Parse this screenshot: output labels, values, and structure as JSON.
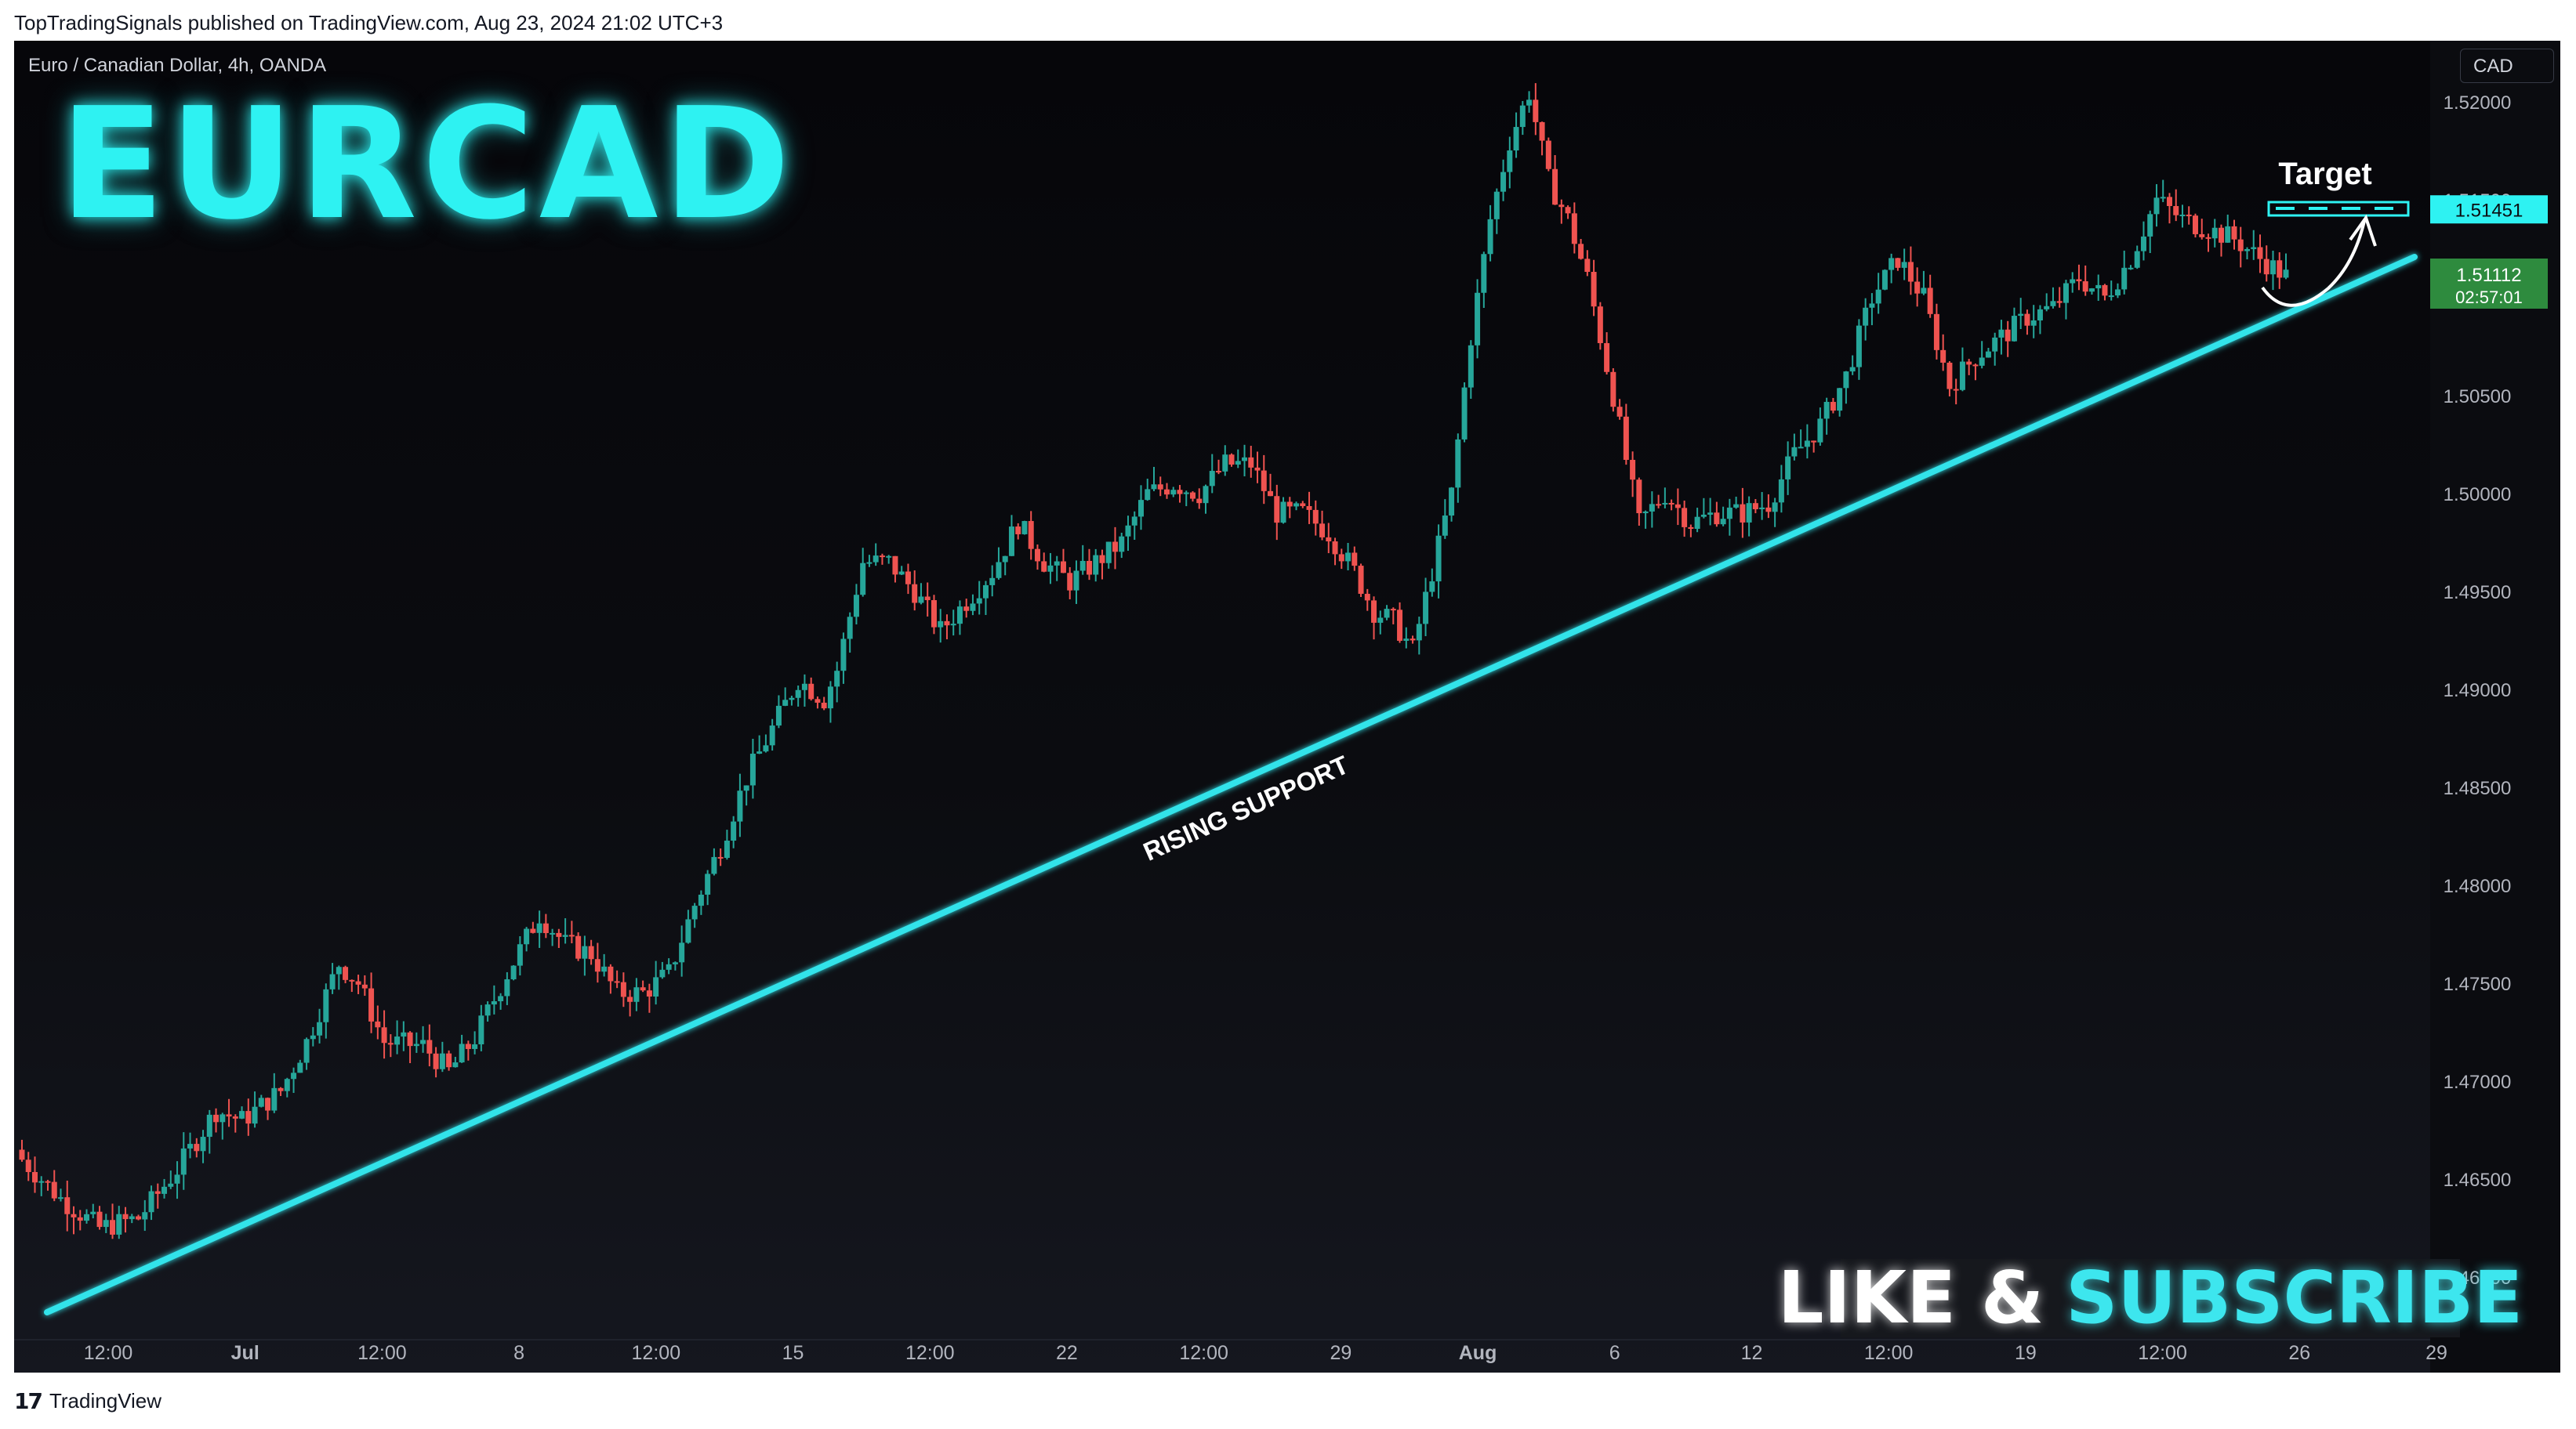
{
  "header": {
    "published_line": "TopTradingSignals published on TradingView.com, Aug 23, 2024 21:02 UTC+3"
  },
  "chart": {
    "symbol_line": "Euro / Canadian Dollar, 4h, OANDA",
    "currency": "CAD",
    "big_title": "EURCAD",
    "support_label": "RISING SUPPORT",
    "target_label": "Target",
    "target_price": "1.51451",
    "last_price": "1.51112",
    "countdown": "02:57:01",
    "cta_part1": "LIKE &",
    "cta_part2": "SUBSCRIBE",
    "colors": {
      "up": "#26a69a",
      "down": "#ef5350",
      "support": "#33e3ea",
      "target": "#2ef2f2",
      "last_price_bg": "#2e8b3e"
    }
  },
  "chart_data": {
    "type": "candlestick",
    "title": "Euro / Canadian Dollar, 4h, OANDA",
    "y_ticks": [
      "1.46000",
      "1.46500",
      "1.47000",
      "1.47500",
      "1.48000",
      "1.48500",
      "1.49000",
      "1.49500",
      "1.50000",
      "1.50500",
      "1.51000",
      "1.51500",
      "1.52000"
    ],
    "x_ticks": [
      "12:00",
      "Jul",
      "12:00",
      "8",
      "12:00",
      "15",
      "12:00",
      "22",
      "12:00",
      "29",
      "Aug",
      "6",
      "12",
      "12:00",
      "19",
      "12:00",
      "26",
      "29"
    ],
    "ylim": [
      1.4576,
      1.5242
    ],
    "close_path": [
      [
        0,
        1.466
      ],
      [
        6,
        1.464
      ],
      [
        12,
        1.4625
      ],
      [
        18,
        1.463
      ],
      [
        24,
        1.4655
      ],
      [
        30,
        1.4685
      ],
      [
        34,
        1.468
      ],
      [
        40,
        1.4695
      ],
      [
        44,
        1.472
      ],
      [
        49,
        1.476
      ],
      [
        52,
        1.475
      ],
      [
        56,
        1.472
      ],
      [
        62,
        1.4718
      ],
      [
        66,
        1.4705
      ],
      [
        70,
        1.4722
      ],
      [
        75,
        1.4755
      ],
      [
        80,
        1.4785
      ],
      [
        84,
        1.477
      ],
      [
        88,
        1.4765
      ],
      [
        92,
        1.4745
      ],
      [
        96,
        1.4745
      ],
      [
        100,
        1.4755
      ],
      [
        104,
        1.479
      ],
      [
        108,
        1.482
      ],
      [
        112,
        1.4855
      ],
      [
        116,
        1.488
      ],
      [
        120,
        1.4905
      ],
      [
        124,
        1.4895
      ],
      [
        126,
        1.491
      ],
      [
        130,
        1.4965
      ],
      [
        134,
        1.4965
      ],
      [
        138,
        1.495
      ],
      [
        142,
        1.493
      ],
      [
        146,
        1.4945
      ],
      [
        150,
        1.496
      ],
      [
        154,
        1.4985
      ],
      [
        158,
        1.4965
      ],
      [
        162,
        1.4955
      ],
      [
        166,
        1.4965
      ],
      [
        170,
        1.4975
      ],
      [
        174,
        1.5
      ],
      [
        178,
        1.5005
      ],
      [
        182,
        1.5
      ],
      [
        186,
        1.5015
      ],
      [
        190,
        1.5015
      ],
      [
        194,
        1.499
      ],
      [
        198,
        1.499
      ],
      [
        202,
        1.498
      ],
      [
        206,
        1.496
      ],
      [
        209,
        1.494
      ],
      [
        212,
        1.4935
      ],
      [
        215,
        1.492
      ],
      [
        218,
        1.496
      ],
      [
        221,
        1.5
      ],
      [
        224,
        1.508
      ],
      [
        227,
        1.514
      ],
      [
        230,
        1.518
      ],
      [
        233,
        1.5205
      ],
      [
        236,
        1.516
      ],
      [
        239,
        1.514
      ],
      [
        242,
        1.511
      ],
      [
        246,
        1.505
      ],
      [
        250,
        1.4985
      ],
      [
        254,
        1.5
      ],
      [
        258,
        1.4985
      ],
      [
        262,
        1.499
      ],
      [
        266,
        1.499
      ],
      [
        270,
        1.4995
      ],
      [
        274,
        1.502
      ],
      [
        278,
        1.5035
      ],
      [
        282,
        1.506
      ],
      [
        286,
        1.51
      ],
      [
        290,
        1.512
      ],
      [
        294,
        1.51
      ],
      [
        298,
        1.5055
      ],
      [
        302,
        1.507
      ],
      [
        306,
        1.508
      ],
      [
        310,
        1.509
      ],
      [
        314,
        1.5095
      ],
      [
        318,
        1.511
      ],
      [
        322,
        1.51
      ],
      [
        326,
        1.512
      ],
      [
        330,
        1.515
      ],
      [
        334,
        1.514
      ],
      [
        338,
        1.5135
      ],
      [
        342,
        1.513
      ],
      [
        346,
        1.512
      ],
      [
        350,
        1.5111
      ]
    ]
  },
  "footer": {
    "brand": "TradingView",
    "logo_glyph": "17"
  }
}
